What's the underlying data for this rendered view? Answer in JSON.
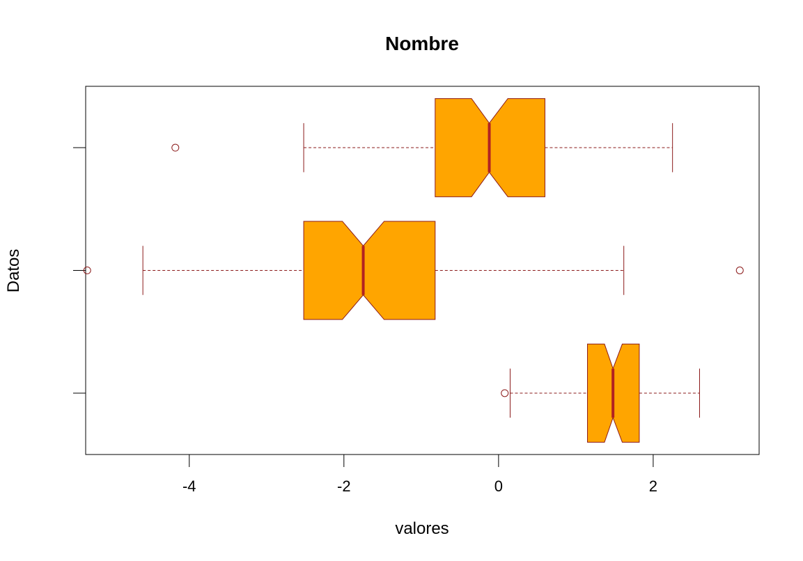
{
  "chart_data": {
    "type": "boxplot",
    "orientation": "horizontal",
    "notched": true,
    "title": "Nombre",
    "xlabel": "valores",
    "ylabel": "Datos",
    "xlim": [
      -5.34,
      3.37
    ],
    "x_ticks": [
      -4,
      -2,
      0,
      2
    ],
    "x_tick_labels": [
      "-4",
      "-2",
      "0",
      "2"
    ],
    "colors": {
      "box_fill": "#FFA500",
      "border": "#8B1A1A",
      "median": "#B22222",
      "frame": "#000000"
    },
    "boxes": [
      {
        "whisker_low": 0.15,
        "q1": 1.15,
        "median": 1.48,
        "q3": 1.82,
        "whisker_high": 2.6,
        "notch_low": 1.37,
        "notch_high": 1.6,
        "outliers": [
          0.08
        ]
      },
      {
        "whisker_low": -4.6,
        "q1": -2.52,
        "median": -1.75,
        "q3": -0.82,
        "whisker_high": 1.62,
        "notch_low": -2.02,
        "notch_high": -1.48,
        "outliers": [
          -5.32,
          3.12
        ]
      },
      {
        "whisker_low": -2.52,
        "q1": -0.82,
        "median": -0.12,
        "q3": 0.6,
        "whisker_high": 2.25,
        "notch_low": -0.35,
        "notch_high": 0.12,
        "outliers": [
          -4.18
        ]
      }
    ]
  }
}
